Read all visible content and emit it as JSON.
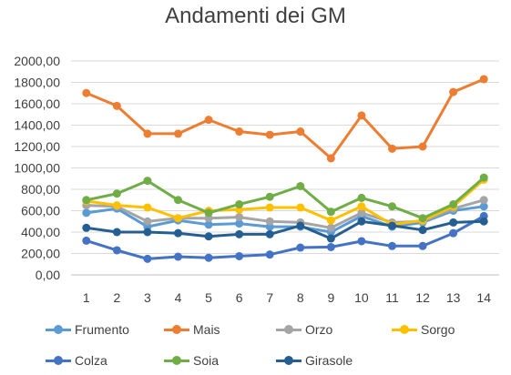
{
  "chart_data": {
    "type": "line",
    "title": "Andamenti dei GM",
    "categories": [
      "1",
      "2",
      "3",
      "4",
      "5",
      "6",
      "7",
      "8",
      "9",
      "10",
      "11",
      "12",
      "13",
      "14"
    ],
    "ylim": [
      0,
      2000
    ],
    "yticks": [
      "0,00",
      "200,00",
      "400,00",
      "600,00",
      "800,00",
      "1000,00",
      "1200,00",
      "1400,00",
      "1600,00",
      "1800,00",
      "2000,00"
    ],
    "grid": true,
    "legend_position": "bottom",
    "series": [
      {
        "name": "Frumento",
        "color": "#5B9BD5",
        "values": [
          580,
          620,
          450,
          510,
          470,
          480,
          450,
          450,
          400,
          550,
          450,
          490,
          600,
          640
        ]
      },
      {
        "name": "Mais",
        "color": "#ED7D31",
        "values": [
          1700,
          1580,
          1320,
          1320,
          1450,
          1340,
          1310,
          1340,
          1090,
          1490,
          1180,
          1200,
          1710,
          1830
        ]
      },
      {
        "name": "Orzo",
        "color": "#A5A5A5",
        "values": [
          650,
          640,
          500,
          530,
          530,
          540,
          500,
          490,
          440,
          580,
          490,
          500,
          620,
          700
        ]
      },
      {
        "name": "Sorgo",
        "color": "#FFC000",
        "values": [
          690,
          650,
          630,
          530,
          600,
          610,
          630,
          630,
          510,
          640,
          470,
          510,
          640,
          890
        ]
      },
      {
        "name": "Colza",
        "color": "#4472C4",
        "values": [
          320,
          230,
          150,
          170,
          160,
          175,
          190,
          255,
          260,
          315,
          270,
          270,
          390,
          550
        ]
      },
      {
        "name": "Soia",
        "color": "#70AD47",
        "values": [
          700,
          760,
          880,
          700,
          580,
          660,
          730,
          830,
          590,
          720,
          640,
          530,
          660,
          910
        ]
      },
      {
        "name": "Girasole",
        "color": "#255E91",
        "values": [
          440,
          400,
          400,
          390,
          360,
          380,
          380,
          460,
          340,
          500,
          460,
          420,
          490,
          500
        ]
      }
    ]
  }
}
